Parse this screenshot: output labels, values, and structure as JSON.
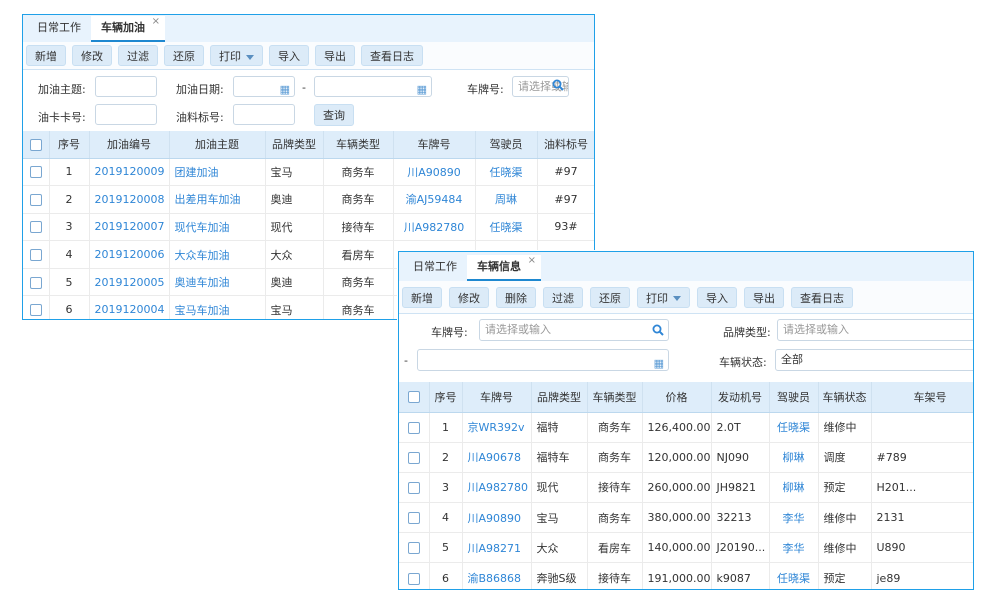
{
  "fuel": {
    "tabs": [
      {
        "label": "日常工作"
      },
      {
        "label": "车辆加油",
        "active": true
      }
    ],
    "close": "×",
    "toolbar": [
      "新增",
      "修改",
      "过滤",
      "还原",
      "打印",
      "导入",
      "导出",
      "查看日志"
    ],
    "filters": {
      "subject_label": "加油主题:",
      "date_label": "加油日期:",
      "date_sep": "-",
      "plate_label": "车牌号:",
      "plate_placeholder": "请选择或输入",
      "card_label": "油卡卡号:",
      "grade_label": "油料标号:",
      "query": "查询"
    },
    "columns": [
      "序号",
      "加油编号",
      "加油主题",
      "品牌类型",
      "车辆类型",
      "车牌号",
      "驾驶员",
      "油料标号"
    ],
    "rows": [
      [
        "1",
        "2019120009",
        "团建加油",
        "宝马",
        "商务车",
        "川A90890",
        "任晓渠",
        "#97"
      ],
      [
        "2",
        "2019120008",
        "出差用车加油",
        "奥迪",
        "商务车",
        "渝AJ59484",
        "周琳",
        "#97"
      ],
      [
        "3",
        "2019120007",
        "现代车加油",
        "现代",
        "接待车",
        "川A982780",
        "任晓渠",
        "93#"
      ],
      [
        "4",
        "2019120006",
        "大众车加油",
        "大众",
        "看房车",
        "",
        "",
        ""
      ],
      [
        "5",
        "2019120005",
        "奥迪车加油",
        "奥迪",
        "商务车",
        "",
        "",
        ""
      ],
      [
        "6",
        "2019120004",
        "宝马车加油",
        "宝马",
        "商务车",
        "",
        "",
        ""
      ]
    ]
  },
  "vehicle": {
    "tabs": [
      {
        "label": "日常工作"
      },
      {
        "label": "车辆信息",
        "active": true
      }
    ],
    "close": "×",
    "toolbar": [
      "新增",
      "修改",
      "删除",
      "过滤",
      "还原",
      "打印",
      "导入",
      "导出",
      "查看日志"
    ],
    "filters": {
      "plate_label": "车牌号:",
      "plate_placeholder": "请选择或输入",
      "brand_label": "品牌类型:",
      "brand_placeholder": "请选择或输入",
      "date_sep": "-",
      "status_label": "车辆状态:",
      "status_value": "全部"
    },
    "columns": [
      "序号",
      "车牌号",
      "品牌类型",
      "车辆类型",
      "价格",
      "发动机号",
      "驾驶员",
      "车辆状态",
      "车架号"
    ],
    "rows": [
      [
        "1",
        "京WR392v",
        "福特",
        "商务车",
        "126,400.00",
        "2.0T",
        "任晓渠",
        "维修中",
        ""
      ],
      [
        "2",
        "川A90678",
        "福特车",
        "商务车",
        "120,000.00",
        "NJ090",
        "柳琳",
        "调度",
        "#789"
      ],
      [
        "3",
        "川A982780",
        "现代",
        "接待车",
        "260,000.00",
        "JH9821",
        "柳琳",
        "预定",
        "H201..."
      ],
      [
        "4",
        "川A90890",
        "宝马",
        "商务车",
        "380,000.00",
        "32213",
        "李华",
        "维修中",
        "2131"
      ],
      [
        "5",
        "川A98271",
        "大众",
        "看房车",
        "140,000.00",
        "J20190...",
        "李华",
        "维修中",
        "U890"
      ],
      [
        "6",
        "渝B86868",
        "奔驰S级",
        "接待车",
        "191,000.00",
        "k9087",
        "任晓渠",
        "预定",
        "je89"
      ]
    ]
  },
  "colors": {
    "accent": "#1e88d0",
    "link": "#2f86d6",
    "header_bg": "#deedfa",
    "button_bg": "#dcebf8"
  }
}
